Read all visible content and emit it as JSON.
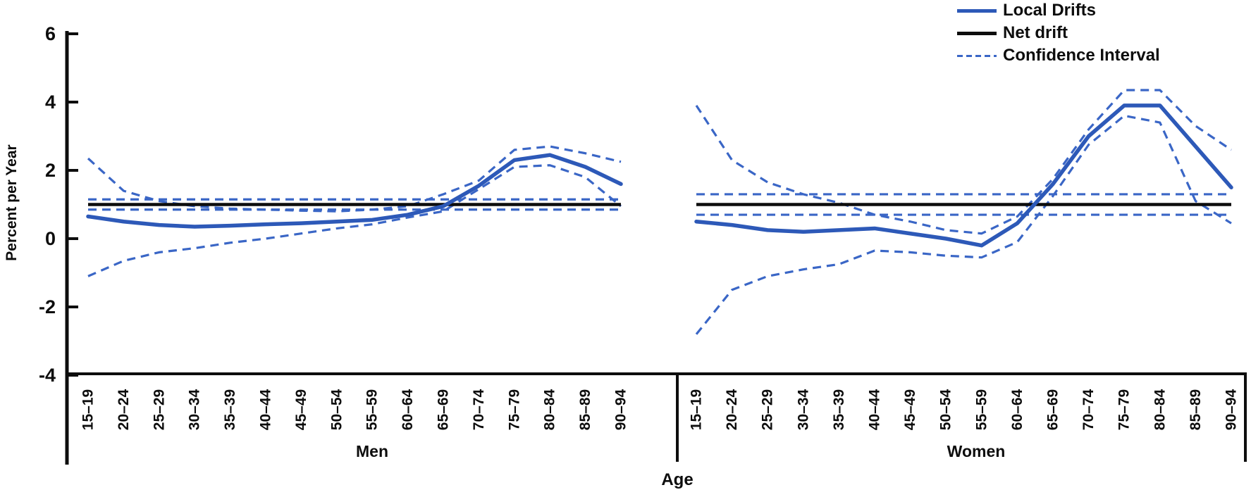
{
  "legend": {
    "items": [
      {
        "label": "Local Drifts",
        "style": "solid-blue"
      },
      {
        "label": "Net drift",
        "style": "solid-black"
      },
      {
        "label": "Confidence Interval",
        "style": "dashed-blue"
      }
    ]
  },
  "colors": {
    "local_drifts": "#2d59b8",
    "confidence_interval": "#3a66c6",
    "net_drift": "#0d0d0d",
    "axis": "#0d0d0d"
  },
  "chart_data": {
    "type": "line",
    "title": "",
    "ylabel": "Percent per Year",
    "xlabel": "Age",
    "ylim": [
      -4,
      6
    ],
    "yticks": [
      6,
      4,
      2,
      0,
      -2,
      -4
    ],
    "grid": false,
    "legend_position": "top-right",
    "categories": [
      "15–19",
      "20–24",
      "25–29",
      "30–34",
      "35–39",
      "40–44",
      "45–49",
      "50–54",
      "55–59",
      "60–64",
      "65–69",
      "70–74",
      "75–79",
      "80–84",
      "85–89",
      "90–94"
    ],
    "panels": [
      {
        "name": "Men",
        "local_drifts": [
          0.65,
          0.5,
          0.4,
          0.35,
          0.38,
          0.42,
          0.45,
          0.5,
          0.55,
          0.7,
          0.95,
          1.55,
          2.3,
          2.45,
          2.1,
          1.6
        ],
        "ci_upper": [
          2.35,
          1.4,
          1.1,
          0.95,
          0.88,
          0.85,
          0.82,
          0.8,
          0.85,
          0.95,
          1.3,
          1.7,
          2.6,
          2.7,
          2.5,
          2.25
        ],
        "ci_lower": [
          -1.1,
          -0.65,
          -0.4,
          -0.28,
          -0.12,
          0.0,
          0.15,
          0.3,
          0.42,
          0.62,
          0.8,
          1.45,
          2.1,
          2.15,
          1.8,
          0.95
        ],
        "net_drift": 1.0,
        "net_drift_ci": [
          0.85,
          1.15
        ]
      },
      {
        "name": "Women",
        "local_drifts": [
          0.5,
          0.4,
          0.25,
          0.2,
          0.25,
          0.3,
          0.15,
          0.0,
          -0.2,
          0.45,
          1.6,
          3.0,
          3.9,
          3.9,
          2.7,
          1.5
        ],
        "ci_upper": [
          3.9,
          2.3,
          1.65,
          1.3,
          1.05,
          0.7,
          0.5,
          0.25,
          0.15,
          0.65,
          1.75,
          3.2,
          4.35,
          4.35,
          3.3,
          2.6
        ],
        "ci_lower": [
          -2.8,
          -1.5,
          -1.1,
          -0.9,
          -0.75,
          -0.35,
          -0.4,
          -0.5,
          -0.55,
          -0.1,
          1.25,
          2.75,
          3.6,
          3.4,
          1.1,
          0.45
        ],
        "net_drift": 1.0,
        "net_drift_ci": [
          0.7,
          1.3
        ]
      }
    ]
  }
}
